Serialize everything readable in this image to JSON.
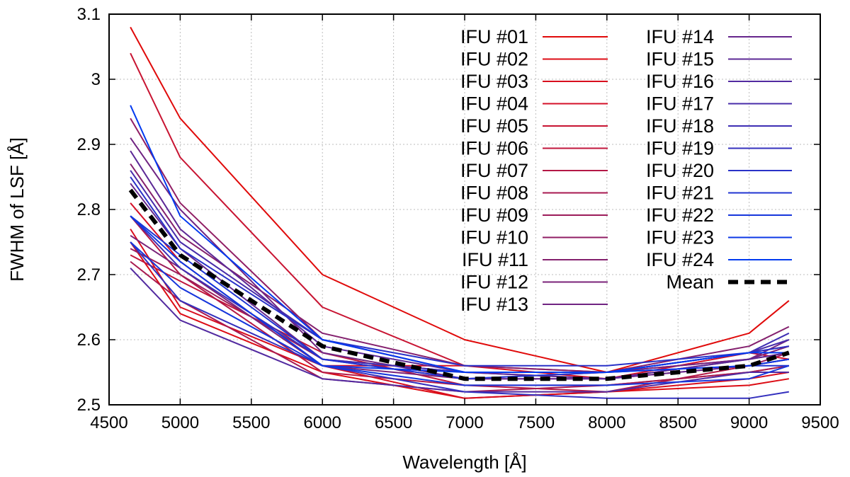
{
  "chart_data": {
    "type": "line",
    "title": "",
    "xlabel": "Wavelength [Å]",
    "ylabel": "FWHM of LSF [Å]",
    "xlim": [
      4500,
      9500
    ],
    "ylim": [
      2.5,
      3.1
    ],
    "xticks": [
      4500,
      5000,
      5500,
      6000,
      6500,
      7000,
      7500,
      8000,
      8500,
      9000,
      9500
    ],
    "yticks": [
      2.5,
      2.6,
      2.7,
      2.8,
      2.9,
      3.0,
      3.1
    ],
    "xtick_labels": [
      "4500",
      "5000",
      "5500",
      "6000",
      "6500",
      "7000",
      "7500",
      "8000",
      "8500",
      "9000",
      "9500"
    ],
    "ytick_labels": [
      "2.5",
      "2.6",
      "2.7",
      "2.8",
      "2.9",
      "3",
      "3.1"
    ],
    "grid": true,
    "legend_position": "top-right",
    "x": [
      4650,
      5000,
      6000,
      7000,
      8000,
      9000,
      9280
    ],
    "series": [
      {
        "name": "IFU #01",
        "color": "#e00a0a",
        "values": [
          3.08,
          2.94,
          2.7,
          2.6,
          2.55,
          2.61,
          2.66
        ]
      },
      {
        "name": "IFU #02",
        "color": "#dc0c14",
        "values": [
          2.75,
          2.64,
          2.55,
          2.51,
          2.52,
          2.53,
          2.54
        ]
      },
      {
        "name": "IFU #03",
        "color": "#d80e1e",
        "values": [
          2.77,
          2.65,
          2.56,
          2.51,
          2.52,
          2.54,
          2.55
        ]
      },
      {
        "name": "IFU #04",
        "color": "#d41028",
        "values": [
          2.81,
          2.72,
          2.56,
          2.56,
          2.54,
          2.58,
          2.57
        ]
      },
      {
        "name": "IFU #05",
        "color": "#c81432",
        "values": [
          3.04,
          2.88,
          2.65,
          2.56,
          2.55,
          2.57,
          2.58
        ]
      },
      {
        "name": "IFU #06",
        "color": "#c0163c",
        "values": [
          2.73,
          2.69,
          2.58,
          2.53,
          2.53,
          2.55,
          2.56
        ]
      },
      {
        "name": "IFU #07",
        "color": "#b41846",
        "values": [
          2.79,
          2.7,
          2.55,
          2.53,
          2.52,
          2.56,
          2.57
        ]
      },
      {
        "name": "IFU #08",
        "color": "#a81a50",
        "values": [
          2.72,
          2.66,
          2.54,
          2.52,
          2.53,
          2.55,
          2.56
        ]
      },
      {
        "name": "IFU #09",
        "color": "#9c1c5a",
        "values": [
          2.74,
          2.7,
          2.57,
          2.55,
          2.54,
          2.56,
          2.58
        ]
      },
      {
        "name": "IFU #10",
        "color": "#901e64",
        "values": [
          2.94,
          2.81,
          2.6,
          2.55,
          2.55,
          2.58,
          2.59
        ]
      },
      {
        "name": "IFU #11",
        "color": "#84206e",
        "values": [
          2.87,
          2.76,
          2.61,
          2.56,
          2.55,
          2.59,
          2.62
        ]
      },
      {
        "name": "IFU #12",
        "color": "#7a2278",
        "values": [
          2.76,
          2.71,
          2.56,
          2.54,
          2.54,
          2.57,
          2.59
        ]
      },
      {
        "name": "IFU #13",
        "color": "#702482",
        "values": [
          2.91,
          2.8,
          2.58,
          2.54,
          2.55,
          2.57,
          2.6
        ]
      },
      {
        "name": "IFU #14",
        "color": "#66268c",
        "values": [
          2.84,
          2.74,
          2.57,
          2.54,
          2.54,
          2.56,
          2.57
        ]
      },
      {
        "name": "IFU #15",
        "color": "#5c2896",
        "values": [
          2.89,
          2.77,
          2.59,
          2.55,
          2.54,
          2.57,
          2.58
        ]
      },
      {
        "name": "IFU #16",
        "color": "#522aa0",
        "values": [
          2.71,
          2.63,
          2.54,
          2.52,
          2.52,
          2.55,
          2.55
        ]
      },
      {
        "name": "IFU #17",
        "color": "#482caa",
        "values": [
          2.86,
          2.75,
          2.6,
          2.55,
          2.55,
          2.58,
          2.6
        ]
      },
      {
        "name": "IFU #18",
        "color": "#3e2eb4",
        "values": [
          2.79,
          2.71,
          2.57,
          2.55,
          2.55,
          2.58,
          2.61
        ]
      },
      {
        "name": "IFU #19",
        "color": "#3430be",
        "values": [
          2.75,
          2.66,
          2.56,
          2.52,
          2.51,
          2.51,
          2.52
        ]
      },
      {
        "name": "IFU #20",
        "color": "#2a32c8",
        "values": [
          2.85,
          2.74,
          2.6,
          2.56,
          2.56,
          2.58,
          2.59
        ]
      },
      {
        "name": "IFU #21",
        "color": "#2034d2",
        "values": [
          2.79,
          2.73,
          2.57,
          2.54,
          2.55,
          2.56,
          2.56
        ]
      },
      {
        "name": "IFU #22",
        "color": "#1636dc",
        "values": [
          2.75,
          2.68,
          2.56,
          2.53,
          2.53,
          2.54,
          2.56
        ]
      },
      {
        "name": "IFU #23",
        "color": "#0c38e6",
        "values": [
          2.79,
          2.72,
          2.56,
          2.55,
          2.55,
          2.56,
          2.57
        ]
      },
      {
        "name": "IFU #24",
        "color": "#023af0",
        "values": [
          2.96,
          2.79,
          2.6,
          2.55,
          2.55,
          2.58,
          2.58
        ]
      },
      {
        "name": "Mean",
        "color": "#000000",
        "style": "dashed",
        "values": [
          2.83,
          2.73,
          2.59,
          2.54,
          2.54,
          2.56,
          2.58
        ]
      }
    ]
  }
}
